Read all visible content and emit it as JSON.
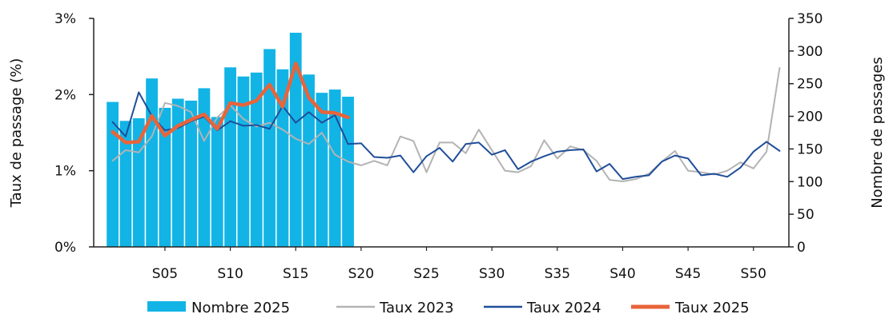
{
  "chart_data": {
    "type": "bar",
    "title": "",
    "xlabel": "",
    "ylabel_left": "Taux de passage (%)",
    "ylabel_right": "Nombre de passages",
    "x_weeks": [
      1,
      2,
      3,
      4,
      5,
      6,
      7,
      8,
      9,
      10,
      11,
      12,
      13,
      14,
      15,
      16,
      17,
      18,
      19,
      20,
      21,
      22,
      23,
      24,
      25,
      26,
      27,
      28,
      29,
      30,
      31,
      32,
      33,
      34,
      35,
      36,
      37,
      38,
      39,
      40,
      41,
      42,
      43,
      44,
      45,
      46,
      47,
      48,
      49,
      50,
      51,
      52
    ],
    "x_tick_labels": [
      {
        "week": 5,
        "label": "S05"
      },
      {
        "week": 10,
        "label": "S10"
      },
      {
        "week": 15,
        "label": "S15"
      },
      {
        "week": 20,
        "label": "S20"
      },
      {
        "week": 25,
        "label": "S25"
      },
      {
        "week": 30,
        "label": "S30"
      },
      {
        "week": 35,
        "label": "S35"
      },
      {
        "week": 40,
        "label": "S40"
      },
      {
        "week": 45,
        "label": "S45"
      },
      {
        "week": 50,
        "label": "S50"
      }
    ],
    "y_left": {
      "range": [
        0,
        3
      ],
      "ticks": [
        0,
        1,
        2,
        3
      ],
      "tick_labels": [
        "0%",
        "1%",
        "2%",
        "3%"
      ]
    },
    "y_right": {
      "range": [
        0,
        350
      ],
      "ticks": [
        0,
        50,
        100,
        150,
        200,
        250,
        300,
        350
      ],
      "tick_labels": [
        "0",
        "50",
        "100",
        "150",
        "200",
        "250",
        "300",
        "350"
      ]
    },
    "grid": false,
    "legend_position": "bottom",
    "series": [
      {
        "name": "Nombre 2025",
        "type": "bar",
        "axis": "right",
        "color": "#12b4e6",
        "weeks": [
          1,
          2,
          3,
          4,
          5,
          6,
          7,
          8,
          9,
          10,
          11,
          12,
          13,
          14,
          15,
          16,
          17,
          18,
          19
        ],
        "values": [
          222,
          193,
          197,
          258,
          213,
          227,
          224,
          243,
          199,
          275,
          261,
          267,
          303,
          272,
          328,
          264,
          236,
          241,
          230
        ]
      },
      {
        "name": "Taux 2023",
        "type": "line",
        "axis": "left",
        "color": "#b3b3b3",
        "weeks": [
          1,
          2,
          3,
          4,
          5,
          6,
          7,
          8,
          9,
          10,
          11,
          12,
          13,
          14,
          15,
          16,
          17,
          18,
          19,
          20,
          21,
          22,
          23,
          24,
          25,
          26,
          27,
          28,
          29,
          30,
          31,
          32,
          33,
          34,
          35,
          36,
          37,
          38,
          39,
          40,
          41,
          42,
          43,
          44,
          45,
          46,
          47,
          48,
          49,
          50,
          51,
          52
        ],
        "values": [
          1.13,
          1.27,
          1.24,
          1.45,
          1.89,
          1.85,
          1.77,
          1.39,
          1.7,
          1.86,
          1.68,
          1.58,
          1.63,
          1.54,
          1.42,
          1.35,
          1.5,
          1.21,
          1.12,
          1.07,
          1.13,
          1.07,
          1.45,
          1.39,
          0.98,
          1.37,
          1.37,
          1.23,
          1.54,
          1.27,
          1.0,
          0.98,
          1.06,
          1.4,
          1.16,
          1.32,
          1.27,
          1.13,
          0.88,
          0.86,
          0.89,
          0.96,
          1.12,
          1.26,
          1.0,
          0.98,
          0.95,
          1.0,
          1.11,
          1.03,
          1.25,
          2.35
        ]
      },
      {
        "name": "Taux 2024",
        "type": "line",
        "axis": "left",
        "color": "#1f4e99",
        "weeks": [
          1,
          2,
          3,
          4,
          5,
          6,
          7,
          8,
          9,
          10,
          11,
          12,
          13,
          14,
          15,
          16,
          17,
          18,
          19,
          20,
          21,
          22,
          23,
          24,
          25,
          26,
          27,
          28,
          29,
          30,
          31,
          32,
          33,
          34,
          35,
          36,
          37,
          38,
          39,
          40,
          41,
          42,
          43,
          44,
          45,
          46,
          47,
          48,
          49,
          50,
          51,
          52
        ],
        "values": [
          1.64,
          1.45,
          2.03,
          1.72,
          1.53,
          1.56,
          1.65,
          1.71,
          1.53,
          1.65,
          1.59,
          1.6,
          1.55,
          1.85,
          1.63,
          1.77,
          1.63,
          1.73,
          1.35,
          1.36,
          1.18,
          1.17,
          1.2,
          0.98,
          1.19,
          1.3,
          1.12,
          1.35,
          1.37,
          1.21,
          1.27,
          1.02,
          1.12,
          1.19,
          1.25,
          1.27,
          1.28,
          0.99,
          1.09,
          0.89,
          0.92,
          0.94,
          1.12,
          1.2,
          1.16,
          0.94,
          0.96,
          0.92,
          1.04,
          1.25,
          1.38,
          1.26
        ]
      },
      {
        "name": "Taux 2025",
        "type": "line",
        "axis": "left",
        "color": "#e8643a",
        "weeks": [
          1,
          2,
          3,
          4,
          5,
          6,
          7,
          8,
          9,
          10,
          11,
          12,
          13,
          14,
          15,
          16,
          17,
          18,
          19
        ],
        "values": [
          1.51,
          1.37,
          1.38,
          1.72,
          1.46,
          1.59,
          1.67,
          1.74,
          1.55,
          1.89,
          1.86,
          1.92,
          2.13,
          1.84,
          2.41,
          1.96,
          1.77,
          1.76,
          1.7
        ]
      }
    ]
  }
}
